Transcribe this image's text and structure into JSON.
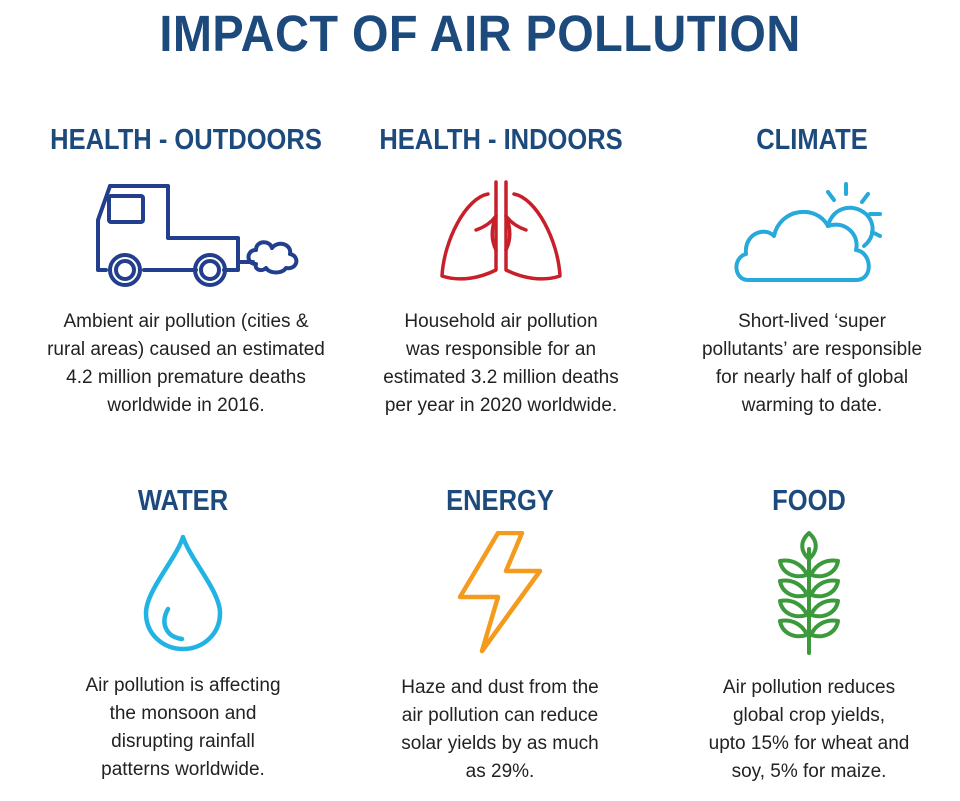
{
  "title": "IMPACT OF AIR POLLUTION",
  "colors": {
    "heading": "#1d4a7d",
    "truck": "#223e8c",
    "lungs": "#c8202a",
    "cloud": "#27a9dc",
    "water": "#21b3e4",
    "energy": "#f49a1d",
    "food": "#3c9a3c"
  },
  "sections": {
    "health_outdoors": {
      "heading": "HEALTH - OUTDOORS",
      "icon": "truck-exhaust-icon",
      "lines": [
        "Ambient air pollution (cities &",
        "rural areas) caused an estimated",
        "4.2 million premature deaths",
        "worldwide in 2016."
      ]
    },
    "health_indoors": {
      "heading": "HEALTH - INDOORS",
      "icon": "lungs-icon",
      "lines": [
        "Household air pollution",
        "was responsible for an",
        "estimated 3.2 million deaths",
        "per year in 2020 worldwide."
      ]
    },
    "climate": {
      "heading": "CLIMATE",
      "icon": "cloud-sun-icon",
      "lines": [
        "Short-lived ‘super",
        "pollutants’ are responsible",
        "for nearly half of global",
        "warming to date."
      ]
    },
    "water": {
      "heading": "WATER",
      "icon": "water-drop-icon",
      "lines": [
        "Air pollution is affecting",
        "the monsoon and",
        "disrupting rainfall",
        "patterns worldwide."
      ]
    },
    "energy": {
      "heading": "ENERGY",
      "icon": "lightning-bolt-icon",
      "lines": [
        "Haze and dust from the",
        "air pollution can reduce",
        "solar yields by as much",
        "as 29%."
      ]
    },
    "food": {
      "heading": "FOOD",
      "icon": "wheat-icon",
      "lines": [
        "Air pollution reduces",
        "global crop yields,",
        "upto 15% for wheat and",
        "soy, 5% for maize."
      ]
    }
  }
}
